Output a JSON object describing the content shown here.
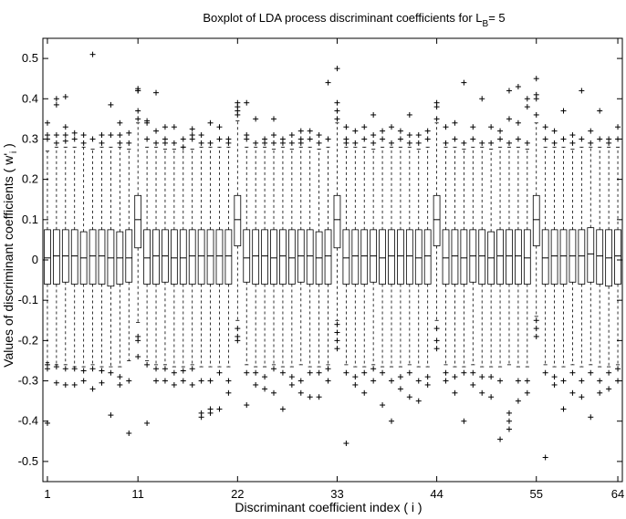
{
  "chart_data": {
    "type": "boxplot",
    "title_main": "Boxplot of LDA process discriminant coefficients for L",
    "title_sub": "B",
    "title_tail": "= 5",
    "xlabel": "Discriminant coefficient index ( i )",
    "ylabel_main": "Values of discriminant coefficients ( w'",
    "ylabel_sub": "i",
    "ylabel_tail": " )",
    "xlim": [
      0.5,
      64.5
    ],
    "ylim": [
      -0.55,
      0.55
    ],
    "xticks": [
      1,
      11,
      22,
      33,
      44,
      55,
      64
    ],
    "yticks": [
      -0.5,
      -0.4,
      -0.3,
      -0.2,
      -0.1,
      0,
      0.1,
      0.2,
      0.3,
      0.4,
      0.5
    ],
    "ytick_labels": [
      "-0.5",
      "-0.4",
      "-0.3",
      "-0.2",
      "-0.1",
      "0",
      "0.1",
      "0.2",
      "0.3",
      "0.4",
      "0.5"
    ],
    "outlier_marker": "+",
    "color": "#000000",
    "boxes": [
      {
        "x": 1,
        "median": 0.005,
        "q1": -0.06,
        "q3": 0.075,
        "lw": -0.255,
        "uw": 0.27,
        "outliers": [
          -0.405,
          -0.26,
          -0.27,
          0.3,
          0.31,
          0.34
        ]
      },
      {
        "x": 2,
        "median": 0.01,
        "q1": -0.06,
        "q3": 0.075,
        "lw": -0.26,
        "uw": 0.28,
        "outliers": [
          -0.265,
          -0.305,
          0.29,
          0.31,
          0.4,
          0.385
        ]
      },
      {
        "x": 3,
        "median": 0.01,
        "q1": -0.055,
        "q3": 0.075,
        "lw": -0.26,
        "uw": 0.28,
        "outliers": [
          -0.27,
          -0.31,
          0.295,
          0.31,
          0.405,
          0.33
        ]
      },
      {
        "x": 4,
        "median": 0.01,
        "q1": -0.06,
        "q3": 0.075,
        "lw": -0.265,
        "uw": 0.28,
        "outliers": [
          -0.27,
          -0.31,
          0.3,
          0.315
        ]
      },
      {
        "x": 5,
        "median": 0.005,
        "q1": -0.06,
        "q3": 0.07,
        "lw": -0.265,
        "uw": 0.28,
        "outliers": [
          -0.275,
          -0.3,
          0.29,
          0.31
        ]
      },
      {
        "x": 6,
        "median": 0.01,
        "q1": -0.06,
        "q3": 0.075,
        "lw": -0.26,
        "uw": 0.275,
        "outliers": [
          -0.27,
          -0.32,
          0.3,
          0.51
        ]
      },
      {
        "x": 7,
        "median": 0.01,
        "q1": -0.06,
        "q3": 0.075,
        "lw": -0.265,
        "uw": 0.28,
        "outliers": [
          -0.275,
          -0.305,
          0.29,
          0.31
        ]
      },
      {
        "x": 8,
        "median": 0.005,
        "q1": -0.065,
        "q3": 0.075,
        "lw": -0.265,
        "uw": 0.28,
        "outliers": [
          -0.385,
          -0.28,
          0.31,
          0.385
        ]
      },
      {
        "x": 9,
        "median": 0.005,
        "q1": -0.06,
        "q3": 0.07,
        "lw": -0.265,
        "uw": 0.28,
        "outliers": [
          -0.29,
          -0.31,
          0.29,
          0.31,
          0.34
        ]
      },
      {
        "x": 10,
        "median": 0.005,
        "q1": -0.055,
        "q3": 0.075,
        "lw": -0.25,
        "uw": 0.275,
        "outliers": [
          -0.43,
          -0.3,
          0.29,
          0.315
        ]
      },
      {
        "x": 11,
        "median": 0.1,
        "q1": 0.03,
        "q3": 0.16,
        "lw": -0.155,
        "uw": 0.34,
        "outliers": [
          -0.19,
          -0.2,
          -0.24,
          0.35,
          0.42,
          0.425,
          0.42,
          0.37
        ]
      },
      {
        "x": 12,
        "median": 0.005,
        "q1": -0.06,
        "q3": 0.075,
        "lw": -0.25,
        "uw": 0.28,
        "outliers": [
          -0.26,
          -0.405,
          0.3,
          0.34,
          0.345
        ]
      },
      {
        "x": 13,
        "median": 0.01,
        "q1": -0.06,
        "q3": 0.075,
        "lw": -0.26,
        "uw": 0.28,
        "outliers": [
          -0.27,
          -0.3,
          0.29,
          0.32,
          0.415
        ]
      },
      {
        "x": 14,
        "median": 0.01,
        "q1": -0.055,
        "q3": 0.075,
        "lw": -0.26,
        "uw": 0.275,
        "outliers": [
          -0.27,
          -0.3,
          0.29,
          0.3,
          0.33
        ]
      },
      {
        "x": 15,
        "median": 0.005,
        "q1": -0.06,
        "q3": 0.075,
        "lw": -0.265,
        "uw": 0.275,
        "outliers": [
          -0.28,
          -0.31,
          0.29,
          0.33
        ]
      },
      {
        "x": 16,
        "median": 0.005,
        "q1": -0.06,
        "q3": 0.075,
        "lw": -0.265,
        "uw": 0.28,
        "outliers": [
          -0.275,
          -0.3,
          0.28,
          0.3
        ]
      },
      {
        "x": 17,
        "median": 0.01,
        "q1": -0.06,
        "q3": 0.075,
        "lw": -0.26,
        "uw": 0.275,
        "outliers": [
          -0.27,
          -0.31,
          0.3,
          0.31,
          0.325
        ]
      },
      {
        "x": 18,
        "median": 0.01,
        "q1": -0.06,
        "q3": 0.075,
        "lw": -0.265,
        "uw": 0.28,
        "outliers": [
          -0.39,
          -0.38,
          -0.3,
          0.29,
          0.31
        ]
      },
      {
        "x": 19,
        "median": 0.01,
        "q1": -0.06,
        "q3": 0.075,
        "lw": -0.265,
        "uw": 0.28,
        "outliers": [
          -0.38,
          -0.37,
          -0.3,
          0.29,
          0.34
        ]
      },
      {
        "x": 20,
        "median": 0.01,
        "q1": -0.06,
        "q3": 0.075,
        "lw": -0.265,
        "uw": 0.28,
        "outliers": [
          -0.37,
          -0.28,
          0.3,
          0.33
        ]
      },
      {
        "x": 21,
        "median": 0.01,
        "q1": -0.06,
        "q3": 0.075,
        "lw": -0.265,
        "uw": 0.28,
        "outliers": [
          -0.3,
          -0.33,
          0.29,
          0.3
        ]
      },
      {
        "x": 22,
        "median": 0.1,
        "q1": 0.035,
        "q3": 0.16,
        "lw": -0.15,
        "uw": 0.345,
        "outliers": [
          -0.17,
          -0.19,
          -0.2,
          0.36,
          0.38,
          0.39,
          0.37
        ]
      },
      {
        "x": 23,
        "median": 0.005,
        "q1": -0.055,
        "q3": 0.075,
        "lw": -0.26,
        "uw": 0.28,
        "outliers": [
          -0.36,
          -0.28,
          0.3,
          0.31,
          0.39
        ]
      },
      {
        "x": 24,
        "median": 0.01,
        "q1": -0.06,
        "q3": 0.075,
        "lw": -0.265,
        "uw": 0.28,
        "outliers": [
          -0.28,
          -0.31,
          0.29,
          0.35
        ]
      },
      {
        "x": 25,
        "median": 0.01,
        "q1": -0.06,
        "q3": 0.075,
        "lw": -0.265,
        "uw": 0.28,
        "outliers": [
          -0.29,
          -0.32,
          0.29,
          0.3
        ]
      },
      {
        "x": 26,
        "median": 0.005,
        "q1": -0.06,
        "q3": 0.075,
        "lw": -0.26,
        "uw": 0.275,
        "outliers": [
          -0.27,
          -0.33,
          0.29,
          0.31,
          0.35
        ]
      },
      {
        "x": 27,
        "median": 0.01,
        "q1": -0.06,
        "q3": 0.075,
        "lw": -0.265,
        "uw": 0.28,
        "outliers": [
          -0.37,
          -0.28,
          0.3,
          0.29
        ]
      },
      {
        "x": 28,
        "median": 0.005,
        "q1": -0.06,
        "q3": 0.075,
        "lw": -0.265,
        "uw": 0.275,
        "outliers": [
          -0.29,
          -0.31,
          0.29,
          0.31
        ]
      },
      {
        "x": 29,
        "median": 0.01,
        "q1": -0.055,
        "q3": 0.075,
        "lw": -0.26,
        "uw": 0.28,
        "outliers": [
          -0.3,
          -0.33,
          0.29,
          0.3,
          0.32
        ]
      },
      {
        "x": 30,
        "median": 0.01,
        "q1": -0.06,
        "q3": 0.075,
        "lw": -0.265,
        "uw": 0.28,
        "outliers": [
          -0.28,
          -0.34,
          0.3,
          0.32
        ]
      },
      {
        "x": 31,
        "median": 0.005,
        "q1": -0.06,
        "q3": 0.07,
        "lw": -0.265,
        "uw": 0.275,
        "outliers": [
          -0.28,
          -0.34,
          0.29,
          0.31
        ]
      },
      {
        "x": 32,
        "median": 0.01,
        "q1": -0.06,
        "q3": 0.075,
        "lw": -0.26,
        "uw": 0.28,
        "outliers": [
          -0.27,
          -0.3,
          0.3,
          0.44
        ]
      },
      {
        "x": 33,
        "median": 0.1,
        "q1": 0.03,
        "q3": 0.16,
        "lw": -0.15,
        "uw": 0.34,
        "outliers": [
          -0.16,
          -0.18,
          -0.2,
          -0.22,
          0.35,
          0.37,
          0.39,
          0.475
        ]
      },
      {
        "x": 34,
        "median": 0.005,
        "q1": -0.06,
        "q3": 0.075,
        "lw": -0.26,
        "uw": 0.28,
        "outliers": [
          -0.455,
          -0.28,
          0.29,
          0.3,
          0.33
        ]
      },
      {
        "x": 35,
        "median": 0.01,
        "q1": -0.06,
        "q3": 0.075,
        "lw": -0.265,
        "uw": 0.28,
        "outliers": [
          -0.29,
          -0.31,
          0.29,
          0.32
        ]
      },
      {
        "x": 36,
        "median": 0.01,
        "q1": -0.06,
        "q3": 0.075,
        "lw": -0.265,
        "uw": 0.28,
        "outliers": [
          -0.28,
          -0.33,
          0.3,
          0.33
        ]
      },
      {
        "x": 37,
        "median": 0.01,
        "q1": -0.055,
        "q3": 0.075,
        "lw": -0.26,
        "uw": 0.275,
        "outliers": [
          -0.27,
          -0.3,
          0.29,
          0.31,
          0.36
        ]
      },
      {
        "x": 38,
        "median": 0.005,
        "q1": -0.06,
        "q3": 0.075,
        "lw": -0.265,
        "uw": 0.28,
        "outliers": [
          -0.36,
          -0.28,
          0.3,
          0.32
        ]
      },
      {
        "x": 39,
        "median": 0.01,
        "q1": -0.06,
        "q3": 0.075,
        "lw": -0.265,
        "uw": 0.28,
        "outliers": [
          -0.4,
          -0.3,
          0.29,
          0.33
        ]
      },
      {
        "x": 40,
        "median": 0.01,
        "q1": -0.06,
        "q3": 0.075,
        "lw": -0.265,
        "uw": 0.28,
        "outliers": [
          -0.29,
          -0.32,
          0.3,
          0.32
        ]
      },
      {
        "x": 41,
        "median": 0.01,
        "q1": -0.06,
        "q3": 0.075,
        "lw": -0.26,
        "uw": 0.28,
        "outliers": [
          -0.28,
          -0.34,
          0.29,
          0.31,
          0.36
        ]
      },
      {
        "x": 42,
        "median": 0.005,
        "q1": -0.06,
        "q3": 0.075,
        "lw": -0.265,
        "uw": 0.275,
        "outliers": [
          -0.3,
          -0.35,
          0.29,
          0.31
        ]
      },
      {
        "x": 43,
        "median": 0.01,
        "q1": -0.06,
        "q3": 0.075,
        "lw": -0.265,
        "uw": 0.28,
        "outliers": [
          -0.29,
          -0.31,
          0.3,
          0.32
        ]
      },
      {
        "x": 44,
        "median": 0.1,
        "q1": 0.035,
        "q3": 0.16,
        "lw": -0.15,
        "uw": 0.34,
        "outliers": [
          -0.17,
          -0.2,
          -0.22,
          0.35,
          0.38,
          0.39
        ]
      },
      {
        "x": 45,
        "median": 0.005,
        "q1": -0.06,
        "q3": 0.075,
        "lw": -0.26,
        "uw": 0.28,
        "outliers": [
          -0.28,
          -0.3,
          0.29,
          0.33
        ]
      },
      {
        "x": 46,
        "median": 0.01,
        "q1": -0.06,
        "q3": 0.075,
        "lw": -0.265,
        "uw": 0.28,
        "outliers": [
          -0.29,
          -0.33,
          0.3,
          0.34
        ]
      },
      {
        "x": 47,
        "median": 0.005,
        "q1": -0.06,
        "q3": 0.075,
        "lw": -0.265,
        "uw": 0.275,
        "outliers": [
          -0.4,
          -0.28,
          0.29,
          0.44
        ]
      },
      {
        "x": 48,
        "median": 0.01,
        "q1": -0.055,
        "q3": 0.075,
        "lw": -0.26,
        "uw": 0.28,
        "outliers": [
          -0.28,
          -0.31,
          0.3,
          0.33
        ]
      },
      {
        "x": 49,
        "median": 0.01,
        "q1": -0.06,
        "q3": 0.075,
        "lw": -0.265,
        "uw": 0.28,
        "outliers": [
          -0.29,
          -0.33,
          0.29,
          0.4
        ]
      },
      {
        "x": 50,
        "median": 0.005,
        "q1": -0.06,
        "q3": 0.07,
        "lw": -0.265,
        "uw": 0.275,
        "outliers": [
          -0.29,
          -0.34,
          0.29,
          0.33
        ]
      },
      {
        "x": 51,
        "median": 0.01,
        "q1": -0.06,
        "q3": 0.075,
        "lw": -0.265,
        "uw": 0.28,
        "outliers": [
          -0.445,
          -0.3,
          0.3,
          0.32
        ]
      },
      {
        "x": 52,
        "median": 0.01,
        "q1": -0.06,
        "q3": 0.075,
        "lw": -0.26,
        "uw": 0.28,
        "outliers": [
          -0.42,
          -0.4,
          -0.38,
          0.29,
          0.35,
          0.42
        ]
      },
      {
        "x": 53,
        "median": 0.01,
        "q1": -0.06,
        "q3": 0.075,
        "lw": -0.265,
        "uw": 0.28,
        "outliers": [
          -0.35,
          -0.3,
          0.3,
          0.34,
          0.43
        ]
      },
      {
        "x": 54,
        "median": 0.005,
        "q1": -0.06,
        "q3": 0.075,
        "lw": -0.265,
        "uw": 0.275,
        "outliers": [
          -0.3,
          -0.33,
          0.29,
          0.38,
          0.4
        ]
      },
      {
        "x": 55,
        "median": 0.1,
        "q1": 0.035,
        "q3": 0.16,
        "lw": -0.14,
        "uw": 0.34,
        "outliers": [
          -0.15,
          -0.17,
          -0.19,
          0.36,
          0.4,
          0.41,
          0.45
        ]
      },
      {
        "x": 56,
        "median": 0.005,
        "q1": -0.06,
        "q3": 0.075,
        "lw": -0.26,
        "uw": 0.28,
        "outliers": [
          -0.49,
          -0.28,
          0.3,
          0.33
        ]
      },
      {
        "x": 57,
        "median": 0.01,
        "q1": -0.06,
        "q3": 0.075,
        "lw": -0.265,
        "uw": 0.28,
        "outliers": [
          -0.29,
          -0.31,
          0.29,
          0.32
        ]
      },
      {
        "x": 58,
        "median": 0.01,
        "q1": -0.06,
        "q3": 0.075,
        "lw": -0.265,
        "uw": 0.28,
        "outliers": [
          -0.37,
          -0.3,
          0.3,
          0.37
        ]
      },
      {
        "x": 59,
        "median": 0.01,
        "q1": -0.055,
        "q3": 0.075,
        "lw": -0.26,
        "uw": 0.275,
        "outliers": [
          -0.28,
          -0.33,
          0.29,
          0.31
        ]
      },
      {
        "x": 60,
        "median": 0.01,
        "q1": -0.06,
        "q3": 0.075,
        "lw": -0.265,
        "uw": 0.28,
        "outliers": [
          -0.3,
          -0.34,
          0.3,
          0.42
        ]
      },
      {
        "x": 61,
        "median": 0.015,
        "q1": -0.055,
        "q3": 0.08,
        "lw": -0.26,
        "uw": 0.28,
        "outliers": [
          -0.28,
          -0.39,
          0.29,
          0.32
        ]
      },
      {
        "x": 62,
        "median": 0.01,
        "q1": -0.06,
        "q3": 0.075,
        "lw": -0.265,
        "uw": 0.28,
        "outliers": [
          -0.3,
          -0.33,
          0.3,
          0.37
        ]
      },
      {
        "x": 63,
        "median": 0.005,
        "q1": -0.065,
        "q3": 0.075,
        "lw": -0.265,
        "uw": 0.28,
        "outliers": [
          -0.28,
          -0.32,
          0.29,
          0.3
        ]
      },
      {
        "x": 64,
        "median": 0.01,
        "q1": -0.06,
        "q3": 0.075,
        "lw": -0.26,
        "uw": 0.28,
        "outliers": [
          -0.27,
          -0.3,
          0.3,
          0.33
        ]
      }
    ]
  }
}
